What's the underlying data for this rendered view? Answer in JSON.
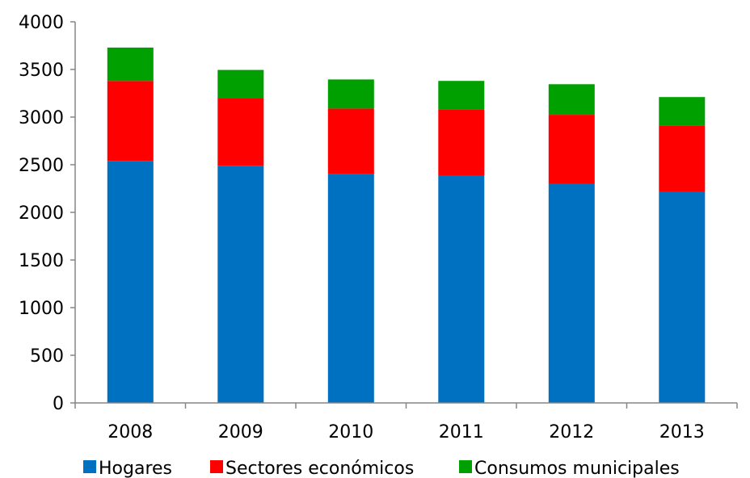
{
  "chart_data": {
    "type": "bar",
    "stacked": true,
    "categories": [
      "2008",
      "2009",
      "2010",
      "2011",
      "2012",
      "2013"
    ],
    "series": [
      {
        "name": "Hogares",
        "color": "#0070C0",
        "values": [
          2540,
          2490,
          2400,
          2390,
          2305,
          2220
        ]
      },
      {
        "name": "Sectores económicos",
        "color": "#FF0000",
        "values": [
          840,
          705,
          690,
          690,
          720,
          690
        ]
      },
      {
        "name": "Consumos municipales",
        "color": "#00A000",
        "values": [
          350,
          300,
          305,
          300,
          320,
          300
        ]
      }
    ],
    "ylim": [
      0,
      4000
    ],
    "yticks": [
      "0",
      "500",
      "1000",
      "1500",
      "2000",
      "2500",
      "3000",
      "3500",
      "4000"
    ],
    "grid": false,
    "legend": "bottom"
  }
}
